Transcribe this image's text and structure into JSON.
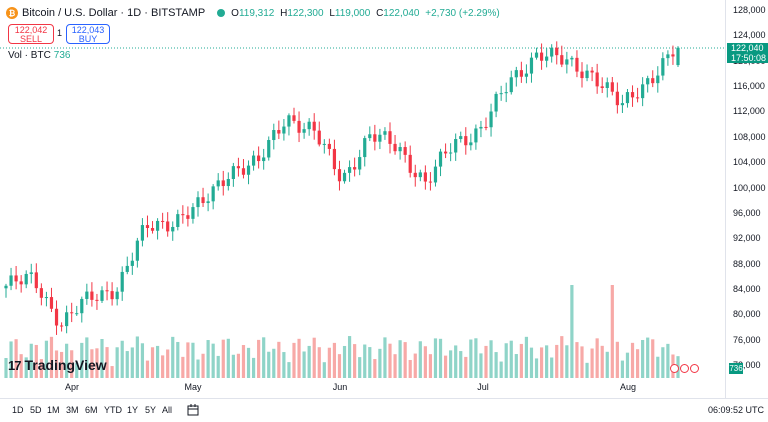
{
  "header": {
    "title": "Bitcoin / U.S. Dollar · 1D · BITSTAMP",
    "open_label": "O",
    "open": "119,312",
    "high_label": "H",
    "high": "122,300",
    "low_label": "L",
    "low": "119,000",
    "close_label": "C",
    "close": "122,040",
    "change": "+2,730 (+2.29%)"
  },
  "trade": {
    "sell_price": "122,042",
    "sell_label": "SELL",
    "spread": "1",
    "buy_price": "122,043",
    "buy_label": "BUY"
  },
  "volume_legend": {
    "label": "Vol · BTC",
    "value": "736"
  },
  "price_axis": {
    "ticks": [
      "128,000",
      "124,000",
      "120,000",
      "116,000",
      "112,000",
      "108,000",
      "104,000",
      "100,000",
      "96,000",
      "92,000",
      "88,000",
      "84,000",
      "80,000",
      "76,000",
      "72,000"
    ],
    "last_price": "122,040",
    "countdown": "17:50:08",
    "volume_tag": "736"
  },
  "time_axis": {
    "months": [
      "Apr",
      "May",
      "Jun",
      "Jul",
      "Aug"
    ]
  },
  "bottom_bar": {
    "timeframes": [
      "1D",
      "5D",
      "1M",
      "3M",
      "6M",
      "YTD",
      "1Y",
      "5Y",
      "All"
    ],
    "clock": "06:09:52 UTC"
  },
  "logo": {
    "mark": "17",
    "text": "TradingView"
  },
  "colors": {
    "up": "#22ab94",
    "down": "#f23645",
    "vol_up": "#8fd4c8",
    "vol_down": "#f7a9a7"
  },
  "chart_data": {
    "type": "candlestick",
    "title": "Bitcoin / U.S. Dollar · 1D · BITSTAMP",
    "x_labels": [
      "Apr",
      "May",
      "Jun",
      "Jul",
      "Aug"
    ],
    "ylim": [
      72000,
      128000
    ],
    "series": [
      {
        "name": "anchor closes (approx)",
        "points": [
          [
            "Mar 28",
            84500
          ],
          [
            "Apr 2",
            85500
          ],
          [
            "Apr 7",
            78500
          ],
          [
            "Apr 9",
            82500
          ],
          [
            "Apr 15",
            84500
          ],
          [
            "Apr 22",
            93500
          ],
          [
            "Apr 28",
            95000
          ],
          [
            "May 2",
            97000
          ],
          [
            "May 8",
            103000
          ],
          [
            "May 15",
            103500
          ],
          [
            "May 22",
            111500
          ],
          [
            "May 27",
            108500
          ],
          [
            "Jun 5",
            101500
          ],
          [
            "Jun 9",
            108000
          ],
          [
            "Jun 16",
            106500
          ],
          [
            "Jun 22",
            100500
          ],
          [
            "Jun 27",
            107000
          ],
          [
            "Jul 3",
            109500
          ],
          [
            "Jul 10",
            116500
          ],
          [
            "Jul 14",
            121500
          ],
          [
            "Jul 22",
            119500
          ],
          [
            "Jul 28",
            118000
          ],
          [
            "Aug 2",
            112500
          ],
          [
            "Aug 7",
            117500
          ],
          [
            "Aug 9",
            122040
          ]
        ]
      }
    ]
  }
}
